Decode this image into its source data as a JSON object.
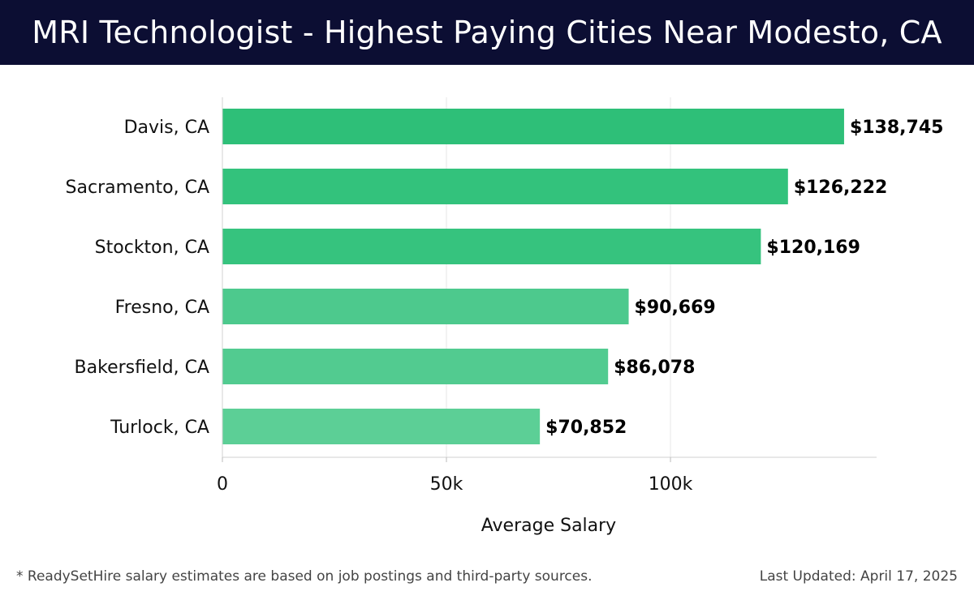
{
  "header": {
    "title": "MRI Technologist - Highest Paying Cities Near Modesto, CA"
  },
  "chart_data": {
    "type": "bar",
    "orientation": "horizontal",
    "categories": [
      "Davis, CA",
      "Sacramento, CA",
      "Stockton, CA",
      "Fresno, CA",
      "Bakersfield, CA",
      "Turlock, CA"
    ],
    "values": [
      138745,
      126222,
      120169,
      90669,
      86078,
      70852
    ],
    "value_labels": [
      "$138,745",
      "$126,222",
      "$120,169",
      "$90,669",
      "$86,078",
      "$70,852"
    ],
    "xlabel": "Average Salary",
    "ylabel": "",
    "xlim": [
      0,
      146000
    ],
    "xticks": [
      0,
      50000,
      100000
    ],
    "xtick_labels": [
      "0",
      "50k",
      "100k"
    ],
    "grid": "vertical",
    "colors": [
      "#2ebf78",
      "#33c27c",
      "#36c37e",
      "#4dc98d",
      "#52cb90",
      "#5ccf96"
    ]
  },
  "footer": {
    "note": "* ReadySetHire salary estimates are based on job postings and third-party sources.",
    "updated": "Last Updated: April 17, 2025"
  }
}
